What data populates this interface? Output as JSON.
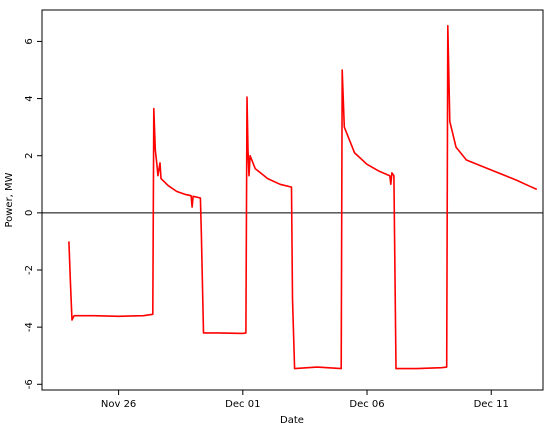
{
  "chart_data": {
    "type": "line",
    "xlabel": "Date",
    "ylabel": "Power, MW",
    "xlim": [
      "2021-11-22T22:00",
      "2021-12-13T02:00"
    ],
    "ylim": [
      -6.2,
      7.1
    ],
    "x_ticks": [
      {
        "date": "2021-11-26",
        "label": "Nov 26"
      },
      {
        "date": "2021-12-01",
        "label": "Dec 01"
      },
      {
        "date": "2021-12-06",
        "label": "Dec 06"
      },
      {
        "date": "2021-12-11",
        "label": "Dec 11"
      }
    ],
    "y_ticks": [
      -6,
      -4,
      -2,
      0,
      2,
      4,
      6
    ],
    "reference_line": 0,
    "grid": false,
    "series": [
      {
        "color": "#ff0000",
        "points": [
          [
            "2021-11-24T00:00",
            -1.0
          ],
          [
            "2021-11-24T01:30",
            -2.5
          ],
          [
            "2021-11-24T03:00",
            -3.75
          ],
          [
            "2021-11-24T05:00",
            -3.6
          ],
          [
            "2021-11-25T00:00",
            -3.6
          ],
          [
            "2021-11-26T00:00",
            -3.62
          ],
          [
            "2021-11-27T00:00",
            -3.6
          ],
          [
            "2021-11-27T09:00",
            -3.55
          ],
          [
            "2021-11-27T10:00",
            3.65
          ],
          [
            "2021-11-27T11:30",
            2.2
          ],
          [
            "2021-11-27T13:00",
            1.7
          ],
          [
            "2021-11-27T14:00",
            1.3
          ],
          [
            "2021-11-27T16:00",
            1.75
          ],
          [
            "2021-11-27T17:00",
            1.2
          ],
          [
            "2021-11-28T00:00",
            0.95
          ],
          [
            "2021-11-28T08:00",
            0.75
          ],
          [
            "2021-11-28T16:00",
            0.65
          ],
          [
            "2021-11-28T22:00",
            0.6
          ],
          [
            "2021-11-28T23:00",
            0.2
          ],
          [
            "2021-11-29T00:00",
            0.58
          ],
          [
            "2021-11-29T07:00",
            0.52
          ],
          [
            "2021-11-29T08:00",
            -0.8
          ],
          [
            "2021-11-29T10:00",
            -4.2
          ],
          [
            "2021-11-30T00:00",
            -4.2
          ],
          [
            "2021-12-01T00:00",
            -4.22
          ],
          [
            "2021-12-01T03:00",
            -4.2
          ],
          [
            "2021-12-01T04:00",
            4.05
          ],
          [
            "2021-12-01T05:00",
            2.2
          ],
          [
            "2021-12-01T06:00",
            1.3
          ],
          [
            "2021-12-01T07:00",
            2.0
          ],
          [
            "2021-12-01T12:00",
            1.55
          ],
          [
            "2021-12-02T00:00",
            1.2
          ],
          [
            "2021-12-02T12:00",
            1.0
          ],
          [
            "2021-12-02T23:00",
            0.9
          ],
          [
            "2021-12-03T00:00",
            -3.0
          ],
          [
            "2021-12-03T02:00",
            -5.45
          ],
          [
            "2021-12-04T00:00",
            -5.4
          ],
          [
            "2021-12-04T23:00",
            -5.45
          ],
          [
            "2021-12-05T00:00",
            5.0
          ],
          [
            "2021-12-05T02:00",
            3.0
          ],
          [
            "2021-12-05T12:00",
            2.1
          ],
          [
            "2021-12-06T00:00",
            1.7
          ],
          [
            "2021-12-06T12:00",
            1.45
          ],
          [
            "2021-12-06T22:00",
            1.3
          ],
          [
            "2021-12-06T23:00",
            1.0
          ],
          [
            "2021-12-07T00:00",
            1.4
          ],
          [
            "2021-12-07T02:00",
            1.3
          ],
          [
            "2021-12-07T04:00",
            -5.45
          ],
          [
            "2021-12-08T00:00",
            -5.45
          ],
          [
            "2021-12-09T00:00",
            -5.42
          ],
          [
            "2021-12-09T05:00",
            -5.4
          ],
          [
            "2021-12-09T06:00",
            6.55
          ],
          [
            "2021-12-09T08:00",
            3.2
          ],
          [
            "2021-12-09T14:00",
            2.3
          ],
          [
            "2021-12-10T00:00",
            1.85
          ],
          [
            "2021-12-11T00:00",
            1.5
          ],
          [
            "2021-12-12T00:00",
            1.15
          ],
          [
            "2021-12-12T12:00",
            0.95
          ],
          [
            "2021-12-12T20:00",
            0.82
          ]
        ]
      }
    ]
  }
}
